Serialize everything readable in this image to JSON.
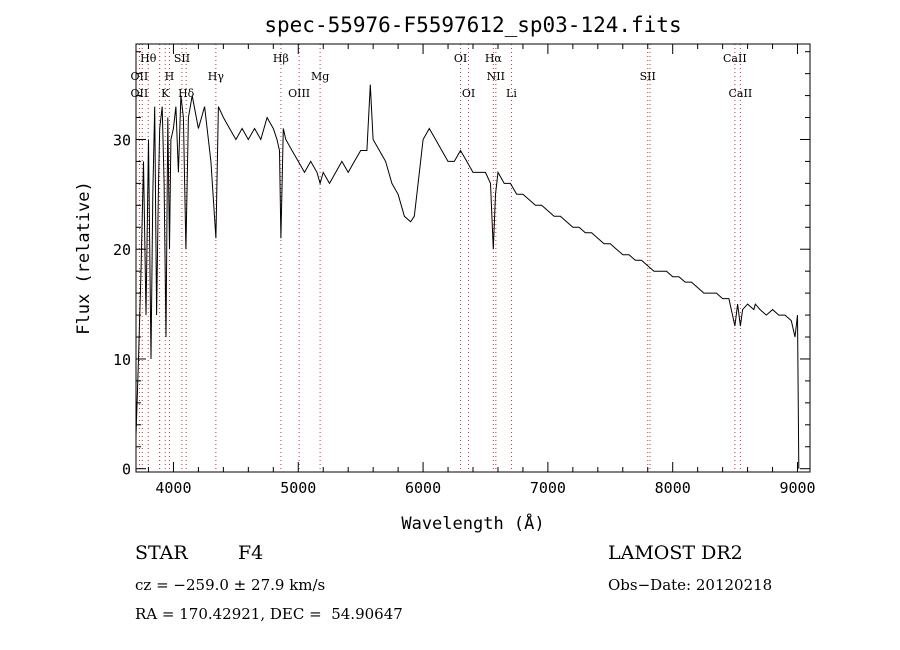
{
  "chart_data": {
    "type": "line",
    "title": "spec-55976-F5597612_sp03-124.fits",
    "xlabel": "Wavelength (Å)",
    "ylabel": "Flux (relative)",
    "xlim": [
      3700,
      9100
    ],
    "ylim": [
      -0.3,
      38.7
    ],
    "x_ticks": [
      4000,
      5000,
      6000,
      7000,
      8000,
      9000
    ],
    "y_ticks": [
      0,
      10,
      20,
      30
    ],
    "grid": false,
    "series": [
      {
        "x": [
          3700,
          3720,
          3740,
          3760,
          3780,
          3800,
          3820,
          3835,
          3850,
          3865,
          3880,
          3890,
          3910,
          3925,
          3940,
          3955,
          3968,
          3980,
          4000,
          4020,
          4040,
          4060,
          4080,
          4100,
          4120,
          4150,
          4200,
          4250,
          4300,
          4340,
          4360,
          4400,
          4450,
          4500,
          4550,
          4600,
          4650,
          4700,
          4750,
          4800,
          4830,
          4850,
          4861,
          4880,
          4900,
          4950,
          5000,
          5050,
          5100,
          5150,
          5175,
          5200,
          5250,
          5300,
          5350,
          5400,
          5450,
          5500,
          5550,
          5577,
          5600,
          5650,
          5700,
          5750,
          5800,
          5850,
          5900,
          5930,
          5960,
          6000,
          6050,
          6100,
          6150,
          6200,
          6250,
          6300,
          6350,
          6400,
          6450,
          6500,
          6540,
          6563,
          6580,
          6600,
          6650,
          6700,
          6750,
          6800,
          6850,
          6900,
          6950,
          7000,
          7050,
          7100,
          7150,
          7200,
          7250,
          7300,
          7350,
          7400,
          7450,
          7500,
          7550,
          7600,
          7650,
          7700,
          7750,
          7800,
          7850,
          7900,
          7950,
          8000,
          8050,
          8100,
          8150,
          8200,
          8250,
          8300,
          8350,
          8400,
          8450,
          8498,
          8520,
          8542,
          8560,
          8600,
          8650,
          8662,
          8700,
          8750,
          8800,
          8850,
          8900,
          8950,
          8980,
          9000,
          9010
        ],
        "y": [
          3,
          10,
          18,
          28,
          14,
          30,
          10,
          25,
          33,
          14,
          26,
          31,
          33,
          26,
          12,
          32,
          20,
          30,
          31,
          33,
          27,
          34,
          32,
          20,
          32,
          34,
          31,
          33,
          28,
          21,
          33,
          32,
          31,
          30,
          31,
          30,
          31,
          30,
          32,
          31,
          30,
          29,
          21,
          31,
          30,
          29,
          28,
          27,
          28,
          27,
          26,
          27,
          26,
          27,
          28,
          27,
          28,
          29,
          29,
          35,
          30,
          29,
          28,
          26,
          25,
          23,
          22.5,
          23,
          26,
          30,
          31,
          30,
          29,
          28,
          28,
          29,
          28,
          27,
          27,
          27,
          26,
          20,
          25,
          27,
          26,
          26,
          25,
          25,
          24.5,
          24,
          24,
          23.5,
          23,
          23,
          22.5,
          22,
          22,
          21.5,
          21.5,
          21,
          20.5,
          20.5,
          20,
          19.5,
          19.5,
          19,
          19,
          18.5,
          18,
          18,
          18,
          17.5,
          17.5,
          17,
          17,
          16.5,
          16,
          16,
          16,
          15.5,
          15.5,
          13,
          15,
          13,
          14.5,
          15,
          14.5,
          15,
          14.5,
          14,
          14.5,
          14,
          14,
          13.5,
          12,
          14,
          0
        ]
      }
    ],
    "lines_top": [
      {
        "label": "Hθ",
        "x": 3798
      },
      {
        "label": "SII",
        "x": 4068
      },
      {
        "label": "Hβ",
        "x": 4861
      },
      {
        "label": "OI",
        "x": 6300
      },
      {
        "label": "Hα",
        "x": 6563
      },
      {
        "label": "CaII",
        "x": 8498
      }
    ],
    "lines_mid": [
      {
        "label": "OII",
        "x": 3727
      },
      {
        "label": "H",
        "x": 3968
      },
      {
        "label": "Hγ",
        "x": 4340
      },
      {
        "label": "Mg",
        "x": 5175
      },
      {
        "label": "NII",
        "x": 6583
      },
      {
        "label": "SII",
        "x": 7800
      }
    ],
    "lines_low": [
      {
        "label": "OII",
        "x": 3727
      },
      {
        "label": "K",
        "x": 3934
      },
      {
        "label": "Hδ",
        "x": 4102
      },
      {
        "label": "OIII",
        "x": 5007
      },
      {
        "label": "OI",
        "x": 6364
      },
      {
        "label": "Li",
        "x": 6708
      },
      {
        "label": "CaII",
        "x": 8542
      }
    ],
    "extra_dotted": [
      3750,
      3889,
      4102,
      4340,
      4861,
      5007,
      5175,
      6300,
      6364,
      6563,
      6708,
      7818,
      8498,
      8542
    ]
  },
  "info": {
    "object_class": "STAR",
    "subclass": "F4",
    "survey": "LAMOST DR2",
    "redshift": "cz = −259.0 ± 27.9 km/s",
    "obs_date": "Obs−Date: 20120218",
    "coords": "RA = 170.42921, DEC =  54.90647"
  },
  "colors": {
    "spectrum": "#000000",
    "line_marker": "#cc3333",
    "axes": "#000000"
  }
}
